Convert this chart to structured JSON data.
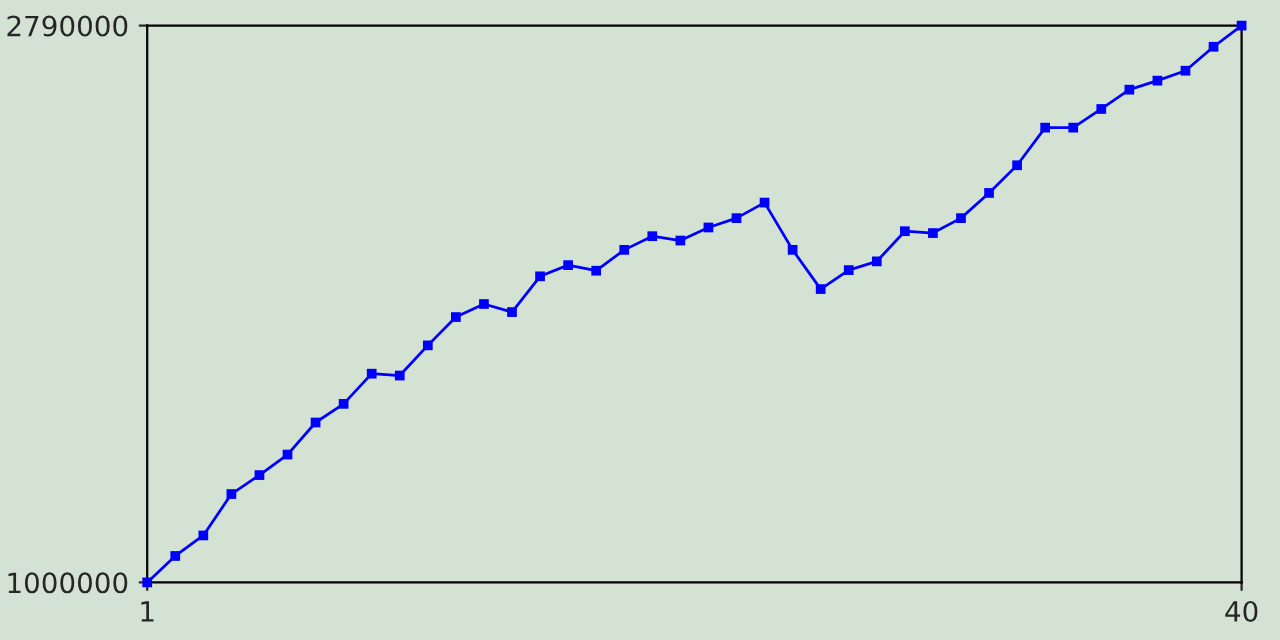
{
  "chart_data": {
    "type": "line",
    "x": [
      1,
      2,
      3,
      4,
      5,
      6,
      7,
      8,
      9,
      10,
      11,
      12,
      13,
      14,
      15,
      16,
      17,
      18,
      19,
      20,
      21,
      22,
      23,
      24,
      25,
      26,
      27,
      28,
      29,
      30,
      31,
      32,
      33,
      34,
      35,
      36,
      37,
      38,
      39,
      40
    ],
    "series": [
      {
        "color": "#0000ff",
        "values": [
          1000000,
          1085000,
          1151000,
          1284000,
          1345000,
          1411000,
          1514000,
          1574000,
          1671000,
          1665000,
          1762000,
          1853000,
          1895000,
          1869000,
          1984000,
          2020000,
          2002000,
          2069000,
          2113000,
          2099000,
          2141000,
          2171000,
          2221000,
          2069000,
          1943000,
          2004000,
          2032000,
          2129000,
          2123000,
          2171000,
          2252000,
          2341000,
          2462000,
          2462000,
          2522000,
          2584000,
          2613000,
          2645000,
          2722000,
          2790000
        ]
      }
    ],
    "xlim": [
      1,
      40
    ],
    "xticks": [
      1,
      40
    ],
    "ylim": [
      1000000,
      2790000
    ],
    "yticks": [
      1000000,
      2790000
    ],
    "marker": "square",
    "line_style": "solid"
  }
}
